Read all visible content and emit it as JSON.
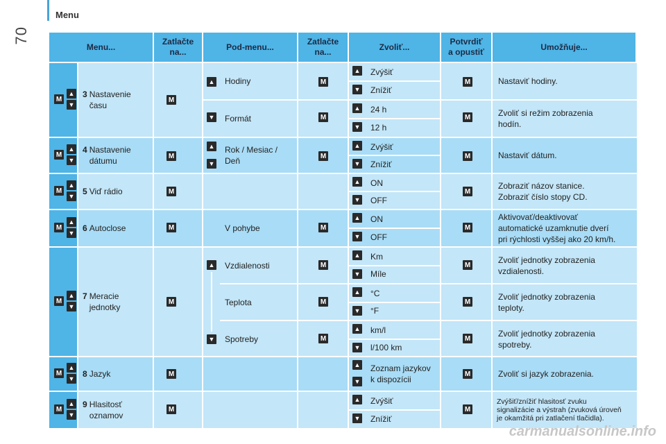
{
  "page": {
    "title": "Menu",
    "page_number": "70"
  },
  "headers": [
    "Menu...",
    "Zatlačte\nna...",
    "Pod-menu...",
    "Zatlačte\nna...",
    "Zvoliť...",
    "Potvrdiť\na opustiť",
    "Umožňuje..."
  ],
  "buttons": {
    "up": "▲",
    "down": "▼",
    "m": "M"
  },
  "rows": {
    "r3": {
      "num": "3",
      "menu": "Nastavenie\nčasu",
      "subs": [
        {
          "label": "Hodiny",
          "options": [
            "Zvýšiť",
            "Znížiť"
          ],
          "result": "Nastaviť hodiny."
        },
        {
          "label": "Formát",
          "options": [
            "24 h",
            "12 h"
          ],
          "result": "Zvoliť si režim zobrazenia\nhodín."
        }
      ]
    },
    "r4": {
      "num": "4",
      "menu": "Nastavenie\ndátumu",
      "subs": [
        {
          "label": "Rok / Mesiac /\nDeň",
          "options": [
            "Zvýšiť",
            "Znížiť"
          ],
          "result": "Nastaviť dátum."
        }
      ]
    },
    "r5": {
      "num": "5",
      "menu": "Viď rádio",
      "options": [
        "ON",
        "OFF"
      ],
      "result": "Zobraziť názov stanice.\nZobraziť číslo stopy CD."
    },
    "r6": {
      "num": "6",
      "menu": "Autoclose",
      "sub": "V pohybe",
      "options": [
        "ON",
        "OFF"
      ],
      "result": "Aktivovať/deaktivovať\nautomatické uzamknutie dverí\npri rýchlosti vyššej ako 20 km/h."
    },
    "r7": {
      "num": "7",
      "menu": "Meracie\njednotky",
      "subs": [
        {
          "label": "Vzdialenosti",
          "options": [
            "Km",
            "Míle"
          ],
          "result": "Zvoliť jednotky zobrazenia\nvzdialenosti."
        },
        {
          "label": "Teplota",
          "options": [
            "°C",
            "°F"
          ],
          "result": "Zvoliť jednotky zobrazenia\nteploty."
        },
        {
          "label": "Spotreby",
          "options": [
            "km/l",
            "l/100 km"
          ],
          "result": "Zvoliť jednotky zobrazenia\nspotreby."
        }
      ]
    },
    "r8": {
      "num": "8",
      "menu": "Jazyk",
      "option": "Zoznam jazykov\nk dispozícii",
      "result": "Zvoliť si jazyk zobrazenia."
    },
    "r9": {
      "num": "9",
      "menu": "Hlasitosť\noznamov",
      "options": [
        "Zvýšiť",
        "Znížiť"
      ],
      "result": "Zvýšiť/znížiť hlasitosť zvuku\nsignalizácie a výstrah (zvuková úroveň\nje okamžitá pri zatlačení tlačidla)."
    }
  },
  "watermark": "carmanualsonline.info"
}
